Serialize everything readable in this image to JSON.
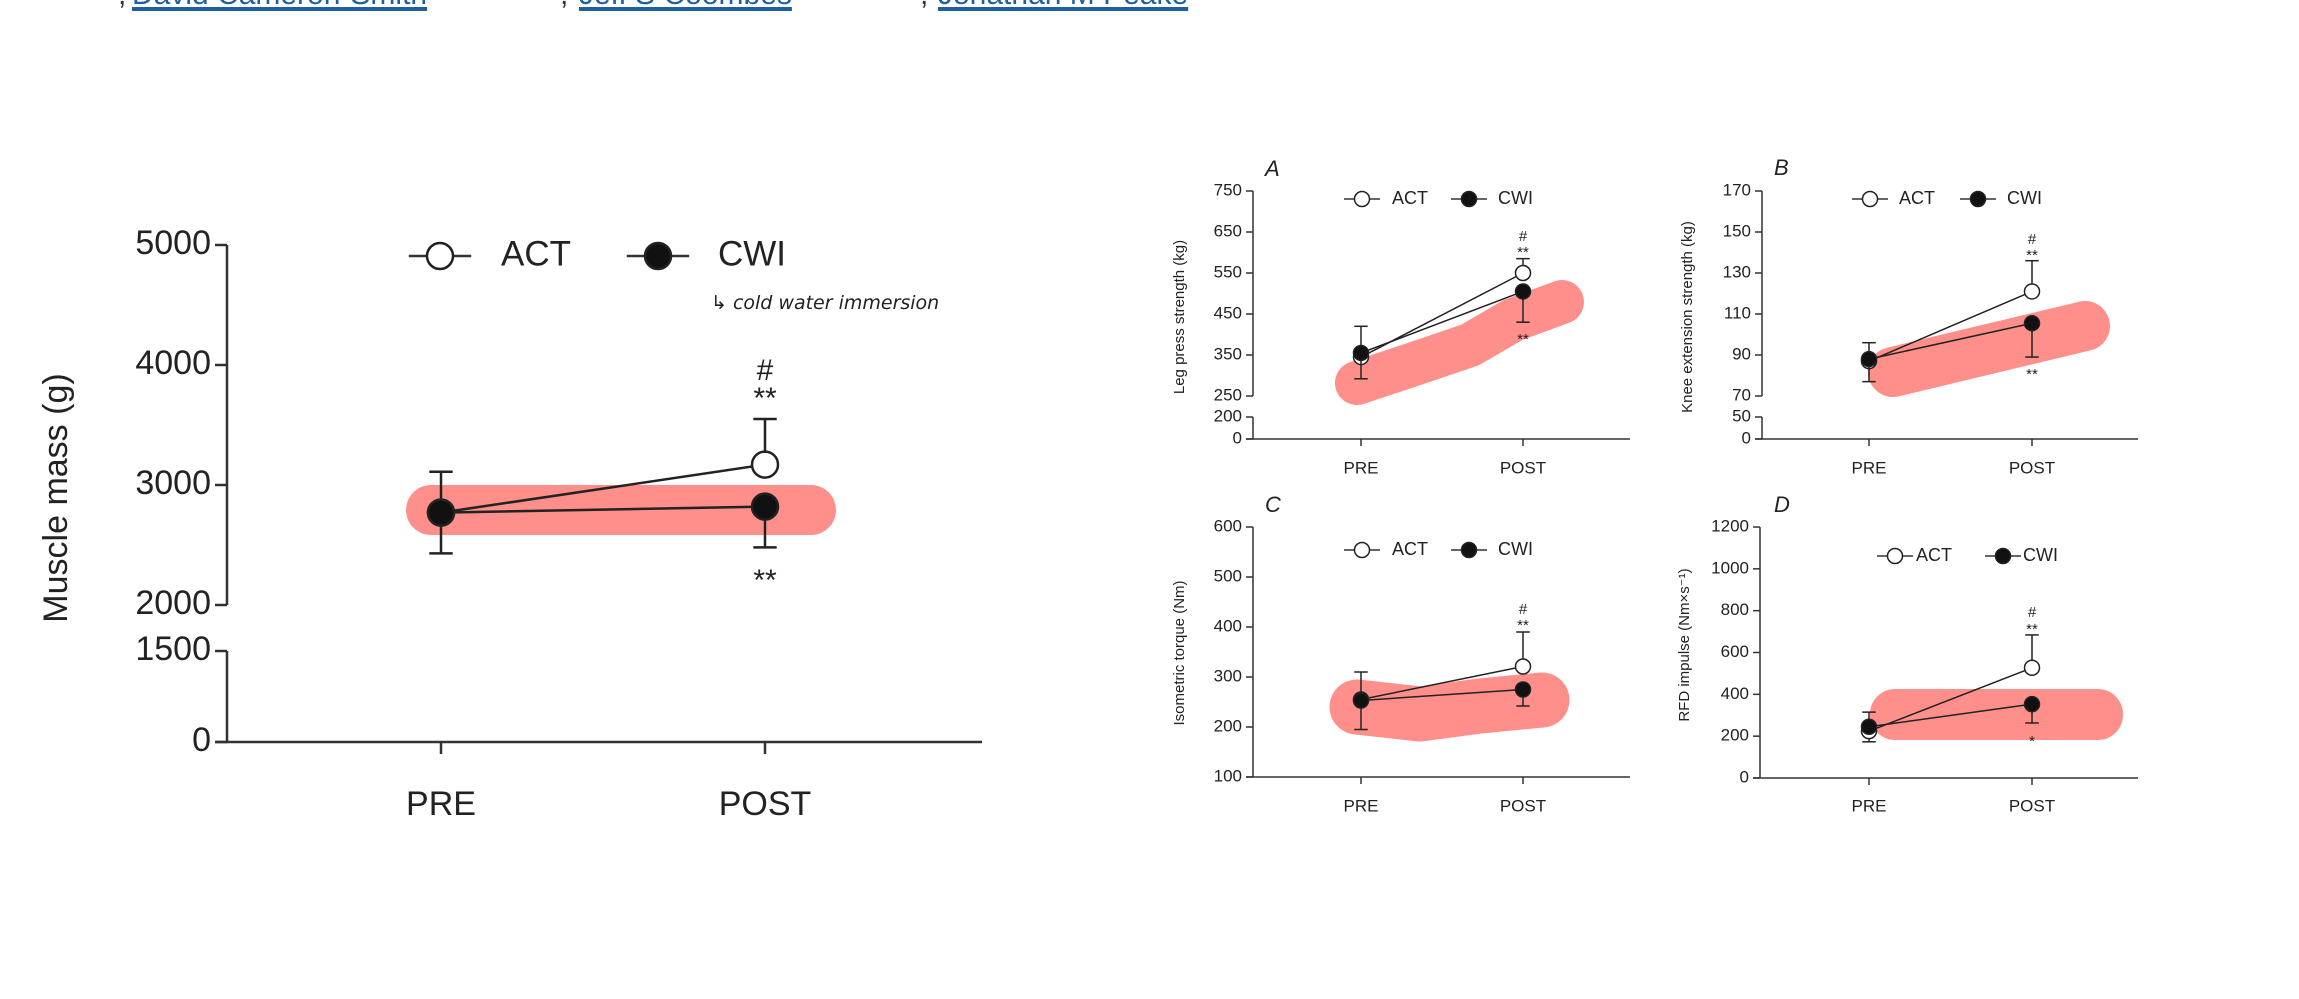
{
  "authors": {
    "separator": ",",
    "links": [
      "David Cameron-Smith",
      "Jeff S Coombes",
      "Jonathan M Peake"
    ],
    "link_color": "#1f5f9e"
  },
  "highlight_color": "#ff8f8a",
  "handwritten_note": {
    "text": "↳ cold water immersion",
    "color": "#1b3f8c"
  },
  "chart_data": [
    {
      "id": "main",
      "type": "line",
      "panel_label": "",
      "ylabel": "Muscle mass (g)",
      "categories": [
        "PRE",
        "POST"
      ],
      "yticks": [
        0,
        1500,
        2000,
        3000,
        4000,
        5000
      ],
      "y_segments": [
        [
          0,
          1500
        ],
        [
          2000,
          5000
        ]
      ],
      "legend": [
        "ACT",
        "CWI"
      ],
      "legend_placement": "top",
      "grid": false,
      "series": [
        {
          "name": "ACT",
          "marker": "open-circle",
          "values": [
            2770,
            3170
          ],
          "err_hi": [
            3110,
            3550
          ],
          "err_lo": [
            null,
            null
          ]
        },
        {
          "name": "CWI",
          "marker": "filled-circle",
          "values": [
            2770,
            2820
          ],
          "err_hi": [
            null,
            null
          ],
          "err_lo": [
            2430,
            2480
          ]
        }
      ],
      "annotations": {
        "post_above": [
          "#",
          "**"
        ],
        "post_below": "**"
      }
    },
    {
      "id": "A",
      "type": "line",
      "panel_label": "A",
      "ylabel": "Leg press strength (kg)",
      "categories": [
        "PRE",
        "POST"
      ],
      "yticks": [
        0,
        200,
        250,
        350,
        450,
        550,
        650,
        750
      ],
      "y_segments": [
        [
          0,
          200
        ],
        [
          250,
          750
        ]
      ],
      "legend": [
        "ACT",
        "CWI"
      ],
      "legend_placement": "top",
      "grid": false,
      "series": [
        {
          "name": "ACT",
          "marker": "open-circle",
          "values": [
            345,
            550
          ],
          "err_hi": [
            420,
            585
          ],
          "err_lo": [
            null,
            null
          ]
        },
        {
          "name": "CWI",
          "marker": "filled-circle",
          "values": [
            355,
            505
          ],
          "err_hi": [
            null,
            null
          ],
          "err_lo": [
            292,
            430
          ]
        }
      ],
      "annotations": {
        "post_above": [
          "#",
          "**"
        ],
        "post_below": "**"
      }
    },
    {
      "id": "B",
      "type": "line",
      "panel_label": "B",
      "ylabel": "Knee extension strength (kg)",
      "categories": [
        "PRE",
        "POST"
      ],
      "yticks": [
        0,
        50,
        70,
        90,
        110,
        130,
        150,
        170
      ],
      "y_segments": [
        [
          0,
          50
        ],
        [
          70,
          170
        ]
      ],
      "legend": [
        "ACT",
        "CWI"
      ],
      "legend_placement": "top",
      "grid": false,
      "series": [
        {
          "name": "ACT",
          "marker": "open-circle",
          "values": [
            87,
            121
          ],
          "err_hi": [
            96,
            136
          ],
          "err_lo": [
            null,
            null
          ]
        },
        {
          "name": "CWI",
          "marker": "filled-circle",
          "values": [
            88,
            105.5
          ],
          "err_hi": [
            null,
            null
          ],
          "err_lo": [
            77,
            89
          ]
        }
      ],
      "annotations": {
        "post_above": [
          "#",
          "**"
        ],
        "post_below": "**"
      }
    },
    {
      "id": "C",
      "type": "line",
      "panel_label": "C",
      "ylabel": "Isometric torque (Nm)",
      "categories": [
        "PRE",
        "POST"
      ],
      "yticks": [
        100,
        200,
        300,
        400,
        500,
        600
      ],
      "y_segments": [
        [
          100,
          600
        ]
      ],
      "legend": [
        "ACT",
        "CWI"
      ],
      "legend_placement": "top",
      "grid": false,
      "series": [
        {
          "name": "ACT",
          "marker": "open-circle",
          "values": [
            255,
            321
          ],
          "err_hi": [
            310,
            390
          ],
          "err_lo": [
            null,
            null
          ]
        },
        {
          "name": "CWI",
          "marker": "filled-circle",
          "values": [
            253,
            275
          ],
          "err_hi": [
            null,
            null
          ],
          "err_lo": [
            195,
            242
          ]
        }
      ],
      "annotations": {
        "post_above": [
          "#",
          "**"
        ],
        "post_below": ""
      }
    },
    {
      "id": "D",
      "type": "line",
      "panel_label": "D",
      "ylabel": "RFD impulse (Nm×s⁻¹)",
      "categories": [
        "PRE",
        "POST"
      ],
      "yticks": [
        0,
        200,
        400,
        600,
        800,
        1000,
        1200
      ],
      "y_segments": [
        [
          0,
          1200
        ]
      ],
      "legend": [
        "ACT",
        "CWI"
      ],
      "legend_placement": "top",
      "grid": false,
      "series": [
        {
          "name": "ACT",
          "marker": "open-circle",
          "values": [
            224,
            527
          ],
          "err_hi": [
            315,
            684
          ],
          "err_lo": [
            173,
            null
          ]
        },
        {
          "name": "CWI",
          "marker": "filled-circle",
          "values": [
            245,
            353
          ],
          "err_hi": [
            null,
            null
          ],
          "err_lo": [
            null,
            263
          ]
        }
      ],
      "annotations": {
        "post_above": [
          "#",
          "**"
        ],
        "post_below": "*"
      }
    }
  ]
}
